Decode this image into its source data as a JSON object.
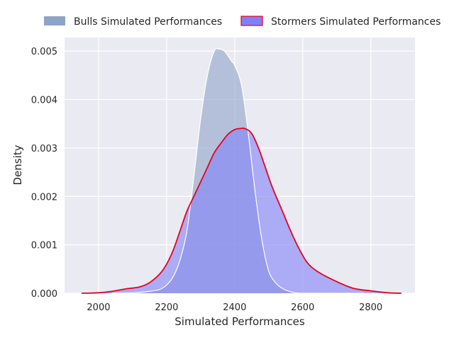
{
  "chart_data": {
    "type": "area",
    "title": "",
    "xlabel": "Simulated Performances",
    "ylabel": "Density",
    "xlim": [
      1900,
      2930
    ],
    "ylim": [
      0,
      0.00528
    ],
    "xticks": [
      2000,
      2200,
      2400,
      2600,
      2800
    ],
    "xtick_labels": [
      "2000",
      "2200",
      "2400",
      "2600",
      "2800"
    ],
    "yticks": [
      0,
      0.001,
      0.002,
      0.003,
      0.004,
      0.005
    ],
    "ytick_labels": [
      "0.000",
      "0.001",
      "0.002",
      "0.003",
      "0.004",
      "0.005"
    ],
    "grid": true,
    "legend_position": "top",
    "background_color": "#eaeaf2",
    "series": [
      {
        "name": "Bulls Simulated Performances",
        "fill_color": "#8fa3c8",
        "line_color": "#ffffff",
        "x": [
          2040,
          2100,
          2150,
          2180,
          2200,
          2220,
          2240,
          2260,
          2280,
          2300,
          2320,
          2340,
          2355,
          2370,
          2390,
          2400,
          2420,
          2440,
          2460,
          2480,
          2500,
          2520,
          2540,
          2560,
          2580,
          2600,
          2640,
          2700,
          2780
        ],
        "y": [
          0,
          1e-05,
          4e-05,
          8e-05,
          0.00017,
          0.00035,
          0.0007,
          0.0013,
          0.0024,
          0.0036,
          0.0045,
          0.005,
          0.00504,
          0.005,
          0.0048,
          0.0047,
          0.0043,
          0.0033,
          0.0021,
          0.0011,
          0.00046,
          0.00022,
          0.0001,
          4e-05,
          1e-05,
          0,
          0,
          0,
          0
        ]
      },
      {
        "name": "Stormers Simulated Performances",
        "fill_color": "#8080f8",
        "line_color": "#e8001c",
        "x": [
          1950,
          2000,
          2040,
          2080,
          2120,
          2150,
          2180,
          2200,
          2220,
          2240,
          2260,
          2280,
          2300,
          2320,
          2340,
          2360,
          2380,
          2400,
          2415,
          2430,
          2450,
          2470,
          2490,
          2510,
          2540,
          2570,
          2600,
          2620,
          2650,
          2700,
          2750,
          2800,
          2850,
          2890
        ],
        "y": [
          0,
          1e-05,
          4e-05,
          9e-05,
          0.00013,
          0.00022,
          0.0004,
          0.0006,
          0.0009,
          0.0013,
          0.0017,
          0.002,
          0.0023,
          0.0026,
          0.0029,
          0.0031,
          0.00328,
          0.00338,
          0.0034,
          0.0034,
          0.0033,
          0.003,
          0.0026,
          0.0022,
          0.0017,
          0.0012,
          0.00078,
          0.00058,
          0.00042,
          0.00024,
          0.0001,
          5e-05,
          1e-05,
          0
        ]
      }
    ]
  }
}
